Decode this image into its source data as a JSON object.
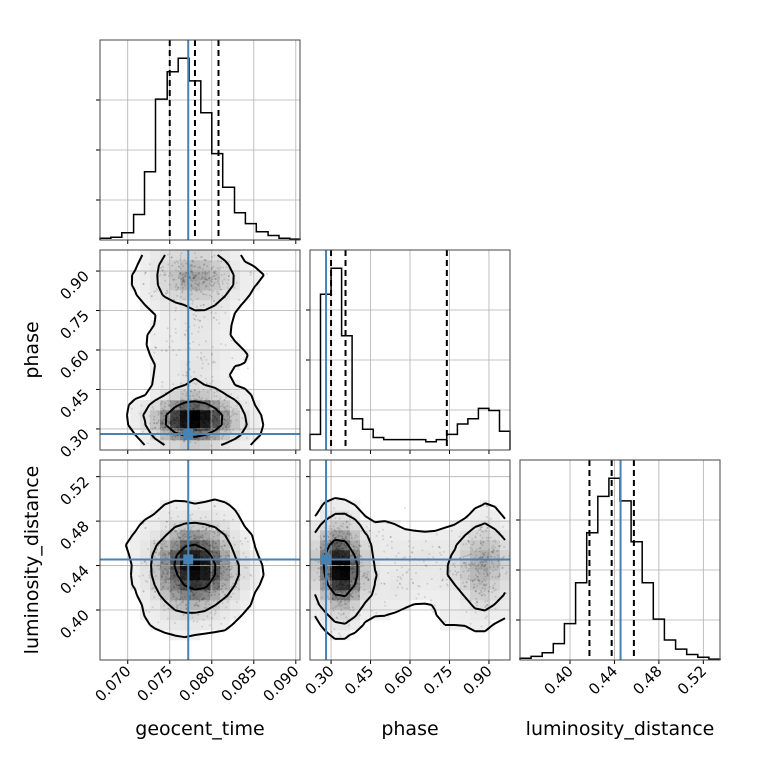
{
  "chart_data": {
    "type": "corner",
    "parameters": [
      {
        "name": "geocent_time",
        "range": [
          0.0667,
          0.0905
        ],
        "ticks": [
          0.07,
          0.075,
          0.08,
          0.085,
          0.09
        ],
        "tick_labels": [
          "0.070",
          "0.075",
          "0.080",
          "0.085",
          "0.090"
        ],
        "truth": 0.0772,
        "quantiles": [
          0.075,
          0.078,
          0.0808
        ]
      },
      {
        "name": "phase",
        "range": [
          0.22,
          0.98
        ],
        "ticks": [
          0.3,
          0.45,
          0.6,
          0.75,
          0.9
        ],
        "tick_labels": [
          "0.30",
          "0.45",
          "0.60",
          "0.75",
          "0.90"
        ],
        "truth": 0.281,
        "quantiles": [
          0.3,
          0.355,
          0.74
        ]
      },
      {
        "name": "luminosity_distance",
        "range": [
          0.355,
          0.535
        ],
        "ticks": [
          0.4,
          0.44,
          0.48,
          0.52
        ],
        "tick_labels": [
          "0.40",
          "0.44",
          "0.48",
          "0.52"
        ],
        "truth": 0.4455,
        "quantiles": [
          0.4175,
          0.4375,
          0.4575
        ]
      }
    ],
    "histograms": [
      {
        "parameter": "geocent_time",
        "edges": [
          0.0667,
          0.068,
          0.0693,
          0.0707,
          0.072,
          0.0733,
          0.0747,
          0.076,
          0.0773,
          0.0787,
          0.08,
          0.0813,
          0.0827,
          0.084,
          0.0853,
          0.0867,
          0.088,
          0.0893,
          0.0905
        ],
        "counts": [
          2,
          3,
          8,
          28,
          75,
          155,
          185,
          200,
          175,
          140,
          95,
          58,
          30,
          18,
          9,
          5,
          2,
          1
        ]
      },
      {
        "parameter": "phase",
        "edges": [
          0.22,
          0.26,
          0.3,
          0.34,
          0.38,
          0.42,
          0.46,
          0.5,
          0.54,
          0.58,
          0.62,
          0.66,
          0.7,
          0.74,
          0.78,
          0.82,
          0.86,
          0.9,
          0.94,
          0.98
        ],
        "counts": [
          15,
          150,
          175,
          110,
          30,
          20,
          12,
          10,
          10,
          10,
          10,
          8,
          10,
          15,
          25,
          30,
          40,
          38,
          18
        ]
      },
      {
        "parameter": "luminosity_distance",
        "edges": [
          0.355,
          0.365,
          0.375,
          0.385,
          0.395,
          0.405,
          0.415,
          0.425,
          0.435,
          0.445,
          0.455,
          0.465,
          0.475,
          0.485,
          0.495,
          0.505,
          0.515,
          0.525,
          0.535
        ],
        "counts": [
          2,
          4,
          8,
          18,
          40,
          85,
          140,
          180,
          200,
          175,
          130,
          85,
          45,
          22,
          12,
          6,
          3,
          1
        ]
      }
    ],
    "contour_levels": [
      0.39,
      0.86,
      0.99
    ],
    "colors": {
      "truth": "#4682b4",
      "contour": "#000000",
      "density": "#000000",
      "grid": "#b0b0b0"
    }
  }
}
